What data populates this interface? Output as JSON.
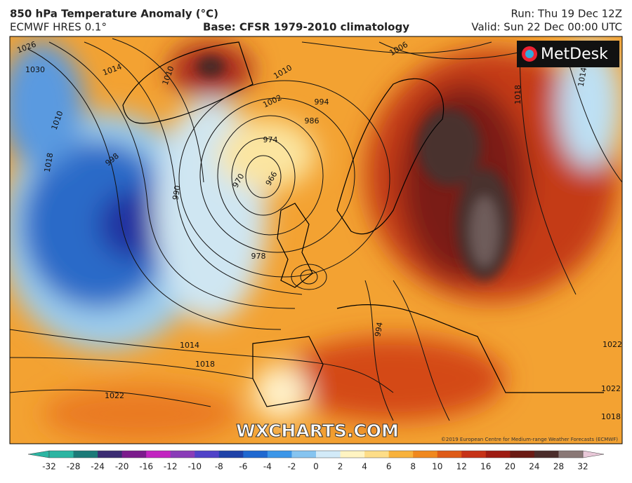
{
  "header": {
    "title": "850 hPa Temperature Anomaly (°C)",
    "model": "ECMWF HRES 0.1°",
    "base": "Base: CFSR 1979-2010 climatology",
    "run": "Run: Thu 19 Dec 12Z",
    "valid": "Valid: Sun 22 Dec 00:00 UTC"
  },
  "logo": "MetDesk",
  "watermark": "WXCHARTS.COM",
  "copyright": "©2019 European Centre for Medium-range Weather Forecasts (ECMWF)",
  "isobar_labels": [
    1026,
    1030,
    1014,
    1010,
    998,
    990,
    1018,
    1010,
    1006,
    1010,
    1002,
    994,
    986,
    974,
    970,
    966,
    978,
    1014,
    1018,
    1022,
    1018,
    1014,
    994,
    1022,
    1022,
    1018
  ],
  "colorbar": {
    "ticks": [
      -32,
      -28,
      -24,
      -20,
      -16,
      -12,
      -10,
      -8,
      -6,
      -4,
      -2,
      0,
      2,
      4,
      6,
      8,
      10,
      12,
      16,
      20,
      24,
      28,
      32
    ],
    "colors": [
      "#2bb5a2",
      "#1c7a78",
      "#3b2c72",
      "#7b1c8c",
      "#c224c0",
      "#8a3cb8",
      "#5042c8",
      "#1f42a8",
      "#1f68d0",
      "#3c96e8",
      "#86c4f0",
      "#d2eaf8",
      "#fff4c2",
      "#fddd88",
      "#f8b23c",
      "#f0881e",
      "#de5a16",
      "#c63216",
      "#9e1c12",
      "#6a1a14",
      "#4a2c2a",
      "#8a7876"
    ]
  }
}
